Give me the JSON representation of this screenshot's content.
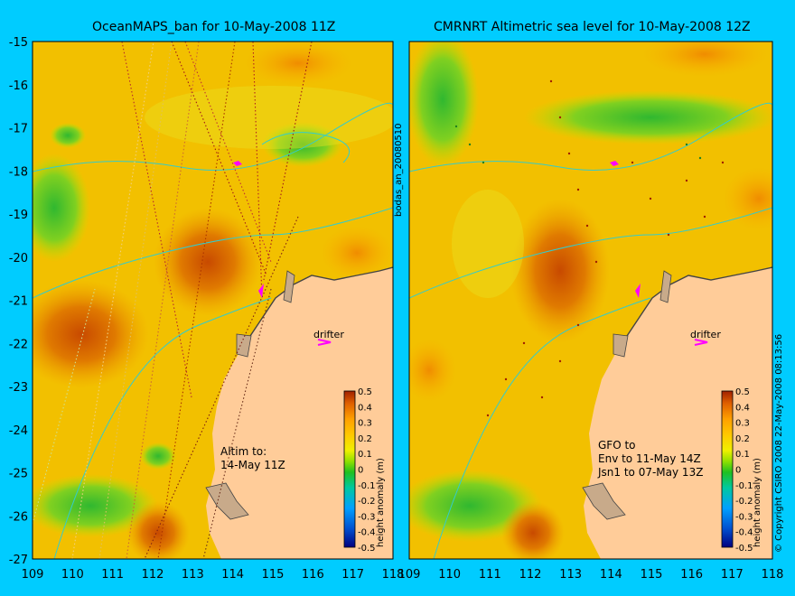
{
  "panels": [
    {
      "title": "OceanMAPS_ban for 10-May-2008 11Z",
      "drifter_label": "drifter",
      "note_lines": [
        "Altim to:",
        "14-May 11Z"
      ]
    },
    {
      "title": "CMRNRT Altimetric sea level  for 10-May-2008 12Z",
      "drifter_label": "drifter",
      "note_lines": [
        "GFO to",
        "Env to 11-May 14Z",
        "Jsn1 to 07-May 13Z"
      ]
    }
  ],
  "axes": {
    "lon_ticks": [
      "109",
      "110",
      "111",
      "112",
      "113",
      "114",
      "115",
      "116",
      "117",
      "118"
    ],
    "lat_ticks": [
      "-15",
      "-16",
      "-17",
      "-18",
      "-19",
      "-20",
      "-21",
      "-22",
      "-23",
      "-24",
      "-25",
      "-26",
      "-27"
    ],
    "lon_range": [
      109,
      118
    ],
    "lat_range": [
      -27,
      -15
    ]
  },
  "colorbar": {
    "label": "height anomaly (m)",
    "ticks": [
      "0.5",
      "0.4",
      "0.3",
      "0.2",
      "0.1",
      "0",
      "-0.1",
      "-0.2",
      "-0.3",
      "-0.4",
      "-0.5"
    ],
    "range": [
      -0.5,
      0.5
    ],
    "colors": [
      "#000080",
      "#0050d0",
      "#00a0ff",
      "#00d0b0",
      "#20c020",
      "#80e000",
      "#e0f000",
      "#ffd000",
      "#ffa000",
      "#e06000",
      "#a02000"
    ]
  },
  "side_label": "bodas_an_20080510",
  "copyright": "© Copyright CSIRO 2008  22-May-2008 08:13:56",
  "colors": {
    "background": "#00ccff",
    "land": "#ffcc99",
    "coast": "#c8aa8a",
    "contour": "#33cccc"
  }
}
